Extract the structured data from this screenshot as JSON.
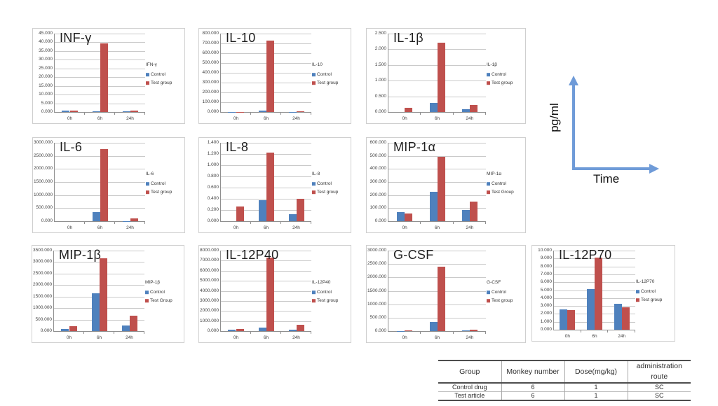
{
  "figure": {
    "colors": {
      "control": "#4f81bd",
      "test": "#bf504d",
      "arrow": "#6f9bd8"
    },
    "axis_annotation": {
      "y_label": "pg/ml",
      "x_label": "Time"
    }
  },
  "chart_data": [
    {
      "type": "bar",
      "title": "INF-γ",
      "legend_title": "IFN-γ",
      "categories": [
        "0h",
        "6h",
        "24h"
      ],
      "ylim": [
        0,
        45
      ],
      "ystep": 5,
      "tick_decimals": 3,
      "series": [
        {
          "name": "Control",
          "values": [
            0.9,
            0.5,
            0.5
          ]
        },
        {
          "name": "Test group",
          "values": [
            0.7,
            39.2,
            1.0
          ]
        }
      ]
    },
    {
      "type": "bar",
      "title": "IL-10",
      "legend_title": "IL-10",
      "categories": [
        "0h",
        "6h",
        "24h"
      ],
      "ylim": [
        0,
        800
      ],
      "ystep": 100,
      "tick_decimals": 3,
      "series": [
        {
          "name": "Control",
          "values": [
            1,
            13,
            1
          ]
        },
        {
          "name": "Test group",
          "values": [
            1,
            727,
            6
          ]
        }
      ]
    },
    {
      "type": "bar",
      "title": "IL-1β",
      "legend_title": "IL-1β",
      "categories": [
        "0h",
        "6h",
        "24h"
      ],
      "ylim": [
        0,
        2.5
      ],
      "ystep": 0.5,
      "tick_decimals": 3,
      "series": [
        {
          "name": "Control",
          "values": [
            0,
            0.29,
            0.1
          ]
        },
        {
          "name": "Test group",
          "values": [
            0.13,
            2.2,
            0.23
          ]
        }
      ]
    },
    {
      "type": "bar",
      "title": "IL-6",
      "legend_title": "IL-6",
      "categories": [
        "0h",
        "6h",
        "24h"
      ],
      "ylim": [
        0,
        3000
      ],
      "ystep": 500,
      "tick_decimals": 3,
      "series": [
        {
          "name": "Control",
          "values": [
            2,
            340,
            5
          ]
        },
        {
          "name": "Test group",
          "values": [
            2,
            2750,
            120
          ]
        }
      ]
    },
    {
      "type": "bar",
      "title": "IL-8",
      "legend_title": "IL-8",
      "categories": [
        "0h",
        "6h",
        "24h"
      ],
      "ylim": [
        0,
        1.4
      ],
      "ystep": 0.2,
      "tick_decimals": 3,
      "series": [
        {
          "name": "Control",
          "values": [
            0,
            0.38,
            0.13
          ]
        },
        {
          "name": "Test group",
          "values": [
            0.26,
            1.22,
            0.4
          ]
        }
      ]
    },
    {
      "type": "bar",
      "title": "MIP-1α",
      "legend_title": "MIP-1α",
      "categories": [
        "0h",
        "6h",
        "24h"
      ],
      "ylim": [
        0,
        600
      ],
      "ystep": 100,
      "tick_decimals": 3,
      "series": [
        {
          "name": "Control",
          "values": [
            70,
            227,
            87
          ]
        },
        {
          "name": "Test Group",
          "values": [
            57,
            492,
            152
          ]
        }
      ]
    },
    {
      "type": "bar",
      "title": "MIP-1β",
      "legend_title": "MIP-1β",
      "categories": [
        "0h",
        "6h",
        "24h"
      ],
      "ylim": [
        0,
        3500
      ],
      "ystep": 500,
      "tick_decimals": 3,
      "series": [
        {
          "name": "Control",
          "values": [
            100,
            1650,
            240
          ]
        },
        {
          "name": "Test Group",
          "values": [
            220,
            3180,
            660
          ]
        }
      ]
    },
    {
      "type": "bar",
      "title": "IL-12P40",
      "legend_title": "IL-12P40",
      "categories": [
        "0h",
        "6h",
        "24h"
      ],
      "ylim": [
        0,
        8000
      ],
      "ystep": 1000,
      "tick_decimals": 3,
      "series": [
        {
          "name": "Control",
          "values": [
            120,
            330,
            120
          ]
        },
        {
          "name": "Test group",
          "values": [
            200,
            7300,
            650
          ]
        }
      ]
    },
    {
      "type": "bar",
      "title": "G-CSF",
      "legend_title": "G-CSF",
      "categories": [
        "0h",
        "6h",
        "24h"
      ],
      "ylim": [
        0,
        3000
      ],
      "ystep": 500,
      "tick_decimals": 3,
      "series": [
        {
          "name": "Control",
          "values": [
            5,
            350,
            30
          ]
        },
        {
          "name": "Test group",
          "values": [
            35,
            2400,
            60
          ]
        }
      ]
    },
    {
      "type": "bar",
      "title": "IL-12P70",
      "legend_title": "IL-12P70",
      "categories": [
        "0h",
        "6h",
        "24h"
      ],
      "ylim": [
        0,
        10
      ],
      "ystep": 1,
      "tick_decimals": 3,
      "series": [
        {
          "name": "Control",
          "values": [
            2.55,
            5.15,
            3.3
          ]
        },
        {
          "name": "Test group",
          "values": [
            2.45,
            9.1,
            2.8
          ]
        }
      ]
    }
  ],
  "table": {
    "headers": [
      "Group",
      "Monkey number",
      "Dose(mg/kg)",
      "administration route"
    ],
    "rows": [
      [
        "Control drug",
        "6",
        "1",
        "SC"
      ],
      [
        "Test article",
        "6",
        "1",
        "SC"
      ]
    ]
  }
}
